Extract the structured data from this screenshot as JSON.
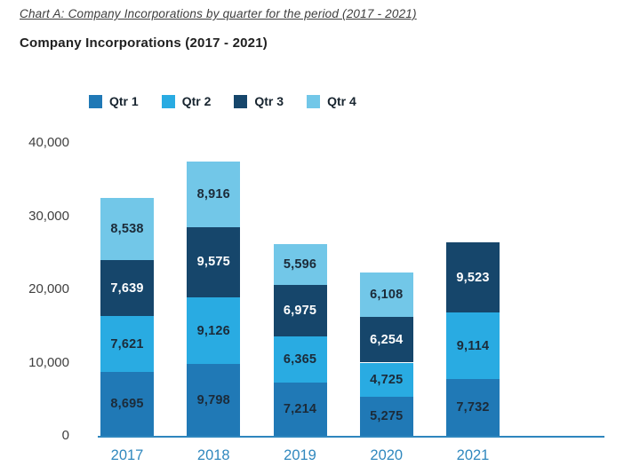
{
  "page": {
    "title": "Chart A: Company Incorporations by quarter for the period (2017 - 2021)",
    "subtitle": "Company Incorporations (2017 - 2021)"
  },
  "chart_data": {
    "type": "bar",
    "stacked": true,
    "title": "Company Incorporations (2017 - 2021)",
    "categories": [
      "2017",
      "2018",
      "2019",
      "2020",
      "2021"
    ],
    "series": [
      {
        "name": "Qtr 1",
        "color": "#2079B6",
        "label_color": "#1C2B39",
        "values": [
          8695,
          9798,
          7214,
          5275,
          7732
        ]
      },
      {
        "name": "Qtr 2",
        "color": "#29ABE2",
        "label_color": "#1C2B39",
        "values": [
          7621,
          9126,
          6365,
          4725,
          9114
        ]
      },
      {
        "name": "Qtr 3",
        "color": "#16466B",
        "label_color": "#FFFFFF",
        "values": [
          7639,
          9575,
          6975,
          6254,
          9523
        ]
      },
      {
        "name": "Qtr 4",
        "color": "#72C7E8",
        "label_color": "#1C2B39",
        "values": [
          8538,
          8916,
          5596,
          6108,
          null
        ]
      }
    ],
    "totals": [
      32493,
      37415,
      26150,
      22362,
      26369
    ],
    "ylim": [
      0,
      40000
    ],
    "yticks": [
      0,
      10000,
      20000,
      30000,
      40000
    ],
    "ytick_labels": [
      "0",
      "10,000",
      "20,000",
      "30,000",
      "40,000"
    ],
    "grid": false,
    "legend_position": "top",
    "colors": {
      "axis_line": "#2E86BE",
      "ytick_text": "#404040",
      "xtick_text": "#3088BE"
    }
  }
}
